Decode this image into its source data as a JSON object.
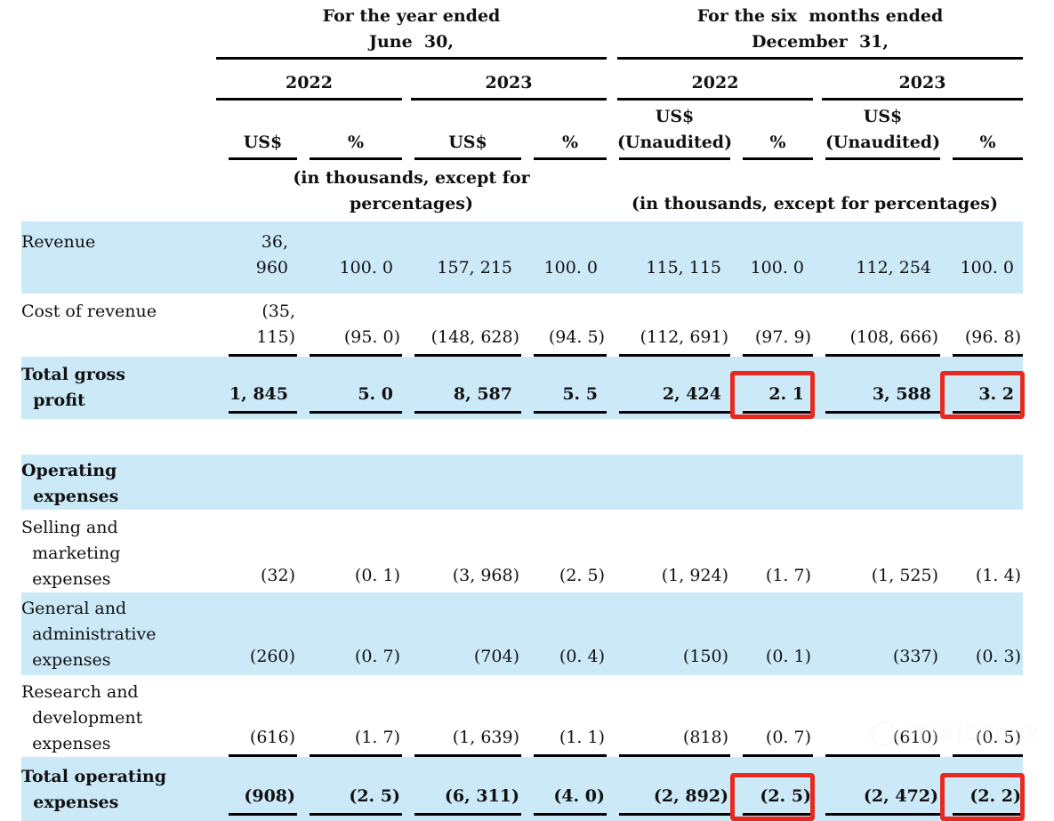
{
  "colors": {
    "highlight": "#cce9f8",
    "redbox": "#e8291f",
    "rule_line": "#000000",
    "text": "#111111"
  },
  "header": {
    "group_year": {
      "title": "For the year ended\nJune  30,",
      "years": [
        "2022",
        "2023"
      ],
      "columns": [
        "US$",
        "%",
        "US$",
        "%"
      ],
      "note": "(in thousands, except for\npercentages)"
    },
    "group_six_months": {
      "title": "For the six  months ended\nDecember  31,",
      "years": [
        "2022",
        "2023"
      ],
      "columns": [
        "US$\n(Unaudited)",
        "%",
        "US$\n(Unaudited)",
        "%"
      ],
      "note": "(in thousands, except for percentages)"
    }
  },
  "rows": [
    {
      "label": "Revenue",
      "highlight": true,
      "bold": false,
      "underline": false,
      "values": [
        "36, 960",
        "100. 0",
        "157, 215",
        "100. 0",
        "115, 115",
        "100. 0",
        "112, 254",
        "100. 0"
      ],
      "redbox": []
    },
    {
      "label": "Cost of revenue",
      "highlight": false,
      "bold": false,
      "underline": true,
      "values": [
        "(35, 115)",
        "(95. 0)",
        "(148, 628)",
        "(94. 5)",
        "(112, 691)",
        "(97. 9)",
        "(108, 666)",
        "(96. 8)"
      ],
      "redbox": []
    },
    {
      "label": "Total gross\n  profit",
      "highlight": true,
      "bold": true,
      "underline": true,
      "values": [
        "1, 845",
        "5. 0",
        "8, 587",
        "5. 5",
        "2, 424",
        "2. 1",
        "3, 588",
        "3. 2"
      ],
      "redbox": [
        5,
        7
      ]
    },
    {
      "spacer": true
    },
    {
      "label": "Operating\n  expenses",
      "highlight": true,
      "bold": true,
      "underline": false,
      "values": [
        "",
        "",
        "",
        "",
        "",
        "",
        "",
        ""
      ],
      "redbox": []
    },
    {
      "label": "Selling and\n  marketing\n  expenses",
      "highlight": false,
      "bold": false,
      "underline": false,
      "values": [
        "(32)",
        "(0. 1)",
        "(3, 968)",
        "(2. 5)",
        "(1, 924)",
        "(1. 7)",
        "(1, 525)",
        "(1. 4)"
      ],
      "redbox": []
    },
    {
      "label": "General and\n  administrative\n  expenses",
      "highlight": true,
      "bold": false,
      "underline": false,
      "values": [
        "(260)",
        "(0. 7)",
        "(704)",
        "(0. 4)",
        "(150)",
        "(0. 1)",
        "(337)",
        "(0. 3)"
      ],
      "redbox": []
    },
    {
      "label": "Research and\n  development\n  expenses",
      "highlight": false,
      "bold": false,
      "underline": true,
      "values": [
        "(616)",
        "(1. 7)",
        "(1, 639)",
        "(1. 1)",
        "(818)",
        "(0. 7)",
        "(610)",
        "(0. 5)"
      ],
      "redbox": []
    },
    {
      "label": "Total operating\n  expenses",
      "highlight": true,
      "bold": true,
      "underline": true,
      "values": [
        "(908)",
        "(2. 5)",
        "(6, 311)",
        "(4. 0)",
        "(2, 892)",
        "(2. 5)",
        "(2, 472)",
        "(2. 2)"
      ],
      "redbox": [
        5,
        7
      ]
    }
  ],
  "watermark": {
    "text": "WikiStock"
  }
}
